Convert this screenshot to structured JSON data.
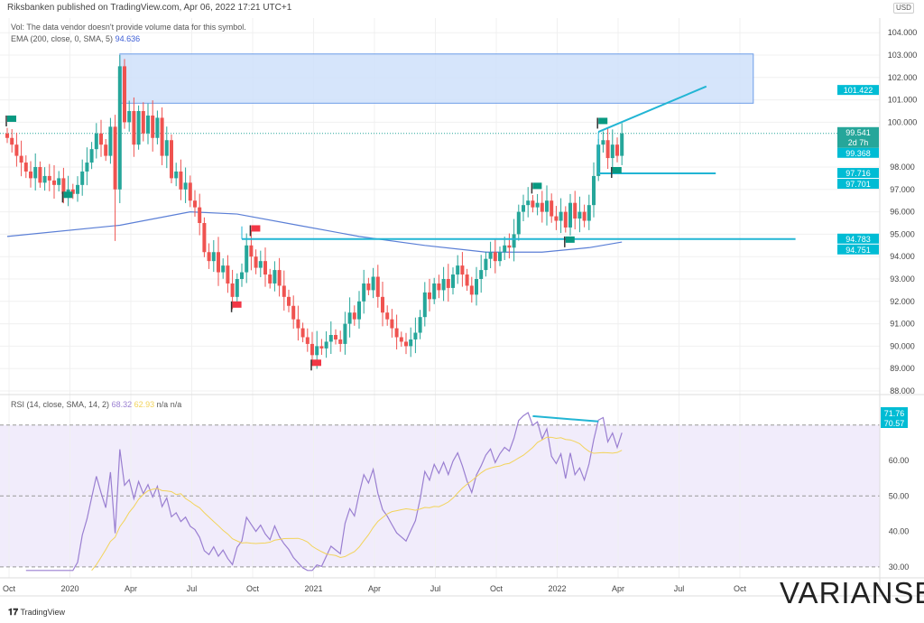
{
  "header": {
    "published": "Riksbanken published on TradingView.com, Apr 06, 2022 17:21 UTC+1",
    "vol_note": "Vol: The data vendor doesn't provide volume data for this symbol.",
    "ema_label": "EMA (200, close, 0, SMA, 5)",
    "ema_value": "94.636",
    "rsi_label": "RSI (14, close, SMA, 14, 2)",
    "rsi_value": "68.32",
    "rsi_sma_value": "62.93",
    "na1": "n/a",
    "na2": "n/a",
    "currency": "USD"
  },
  "footer": {
    "tradingview": "TradingView",
    "brand": "VARIANSE"
  },
  "colors": {
    "up": "#26a69a",
    "down": "#ef5350",
    "ema": "#5b7fd6",
    "line": "#22b5d4",
    "rsi": "#9a7fd1",
    "rsi_sma": "#f2d35a",
    "box": "#cfe0fa"
  },
  "chart_data": {
    "type": "candlestick",
    "interval": "weekly",
    "x_ticks": [
      "Oct",
      "2020",
      "Apr",
      "Jul",
      "Oct",
      "2021",
      "Apr",
      "Jul",
      "Oct",
      "2022",
      "Apr",
      "Jul",
      "Oct"
    ],
    "price_ticks": [
      "104.000",
      "103.000",
      "102.000",
      "101.000",
      "100.000",
      "98.000",
      "97.000",
      "96.000",
      "95.000",
      "94.000",
      "93.000",
      "92.000",
      "91.000",
      "90.000",
      "89.000",
      "88.000"
    ],
    "price_range": [
      87.7,
      104.2
    ],
    "rsi_ticks": [
      "60.00",
      "50.00",
      "40.00",
      "30.00"
    ],
    "rsi_range": [
      28,
      78
    ],
    "closes": [
      99.3,
      99,
      98.5,
      98.2,
      97.8,
      97.5,
      98,
      97.3,
      97.6,
      97.4,
      97.2,
      97.5,
      96.8,
      97,
      96.8,
      97.2,
      97.8,
      98.2,
      98.8,
      99.5,
      99,
      98.5,
      99.8,
      97,
      102.5,
      100,
      100.5,
      99,
      100.5,
      99.5,
      100.3,
      99.3,
      100.2,
      98.5,
      99.2,
      97.5,
      97.8,
      97,
      97.3,
      96.5,
      96.2,
      95.5,
      94.2,
      93.8,
      94.2,
      93.3,
      93.6,
      92.8,
      92.2,
      93,
      93.3,
      94.5,
      94,
      93.5,
      93.8,
      93.2,
      92.8,
      93.4,
      92.7,
      92.2,
      91.8,
      91.2,
      90.8,
      90.4,
      90.1,
      89.6,
      90,
      89.9,
      90.2,
      90.5,
      90.3,
      90.1,
      91,
      91.5,
      91.2,
      92,
      92.8,
      92.5,
      93.1,
      92.2,
      91.5,
      91.2,
      90.8,
      90.4,
      90.2,
      90,
      90.3,
      90.6,
      91.3,
      92.4,
      92.1,
      92.8,
      92.5,
      93,
      92.6,
      93.2,
      93.6,
      93.2,
      92.7,
      92.3,
      93,
      93.4,
      93.9,
      94.2,
      93.8,
      94.2,
      94.5,
      94.4,
      95,
      96,
      96.3,
      96.5,
      96.2,
      96.4,
      96,
      96.5,
      95.8,
      95.6,
      96,
      95.3,
      96.4,
      95.7,
      96,
      95.6,
      96.3,
      97.6,
      99,
      99.2,
      98.4,
      99,
      98.5,
      99.5
    ],
    "ema200": [
      [
        0,
        94.9
      ],
      [
        24,
        95.4
      ],
      [
        39,
        96.0
      ],
      [
        49,
        95.9
      ],
      [
        62,
        95.4
      ],
      [
        75,
        94.9
      ],
      [
        89,
        94.5
      ],
      [
        102,
        94.2
      ],
      [
        114,
        94.2
      ],
      [
        124,
        94.4
      ],
      [
        131,
        94.65
      ]
    ],
    "price_labels": [
      {
        "text": "101.422",
        "value": 101.422
      },
      {
        "text": "99.541",
        "sub": "2d 7h",
        "value": 99.541,
        "current": true
      },
      {
        "text": "99.368",
        "value": 99.368
      },
      {
        "text": "97.716",
        "value": 97.716
      },
      {
        "text": "97.701",
        "value": 97.701
      },
      {
        "text": "94.783",
        "value": 94.783
      },
      {
        "text": "94.751",
        "value": 94.751
      }
    ],
    "rsi_labels": [
      "71.76",
      "70.57"
    ],
    "drawings": {
      "resistance_zone": {
        "from_week": 24,
        "to_week": 159,
        "top": 103.05,
        "bottom": 100.85
      },
      "support_line": {
        "from_week": 50,
        "to_week": 168,
        "price": 94.783
      },
      "trend_line": {
        "from": [
          126,
          99.57
        ],
        "to": [
          149,
          101.6
        ]
      },
      "range_low_line": {
        "from_week": 126,
        "to_week": 151,
        "price": 97.716
      },
      "rsi_divergence": {
        "from": [
          112,
          72.5
        ],
        "to": [
          126,
          71
        ]
      }
    },
    "flags": [
      [
        0,
        100.3,
        "green"
      ],
      [
        12,
        96.9,
        "green"
      ],
      [
        112,
        97.3,
        "green"
      ],
      [
        126,
        100.2,
        "green"
      ],
      [
        129,
        98.0,
        "green"
      ],
      [
        119,
        94.9,
        "green"
      ],
      [
        52,
        95.4,
        "red"
      ],
      [
        48,
        92.0,
        "red"
      ],
      [
        65,
        89.4,
        "red"
      ]
    ]
  }
}
